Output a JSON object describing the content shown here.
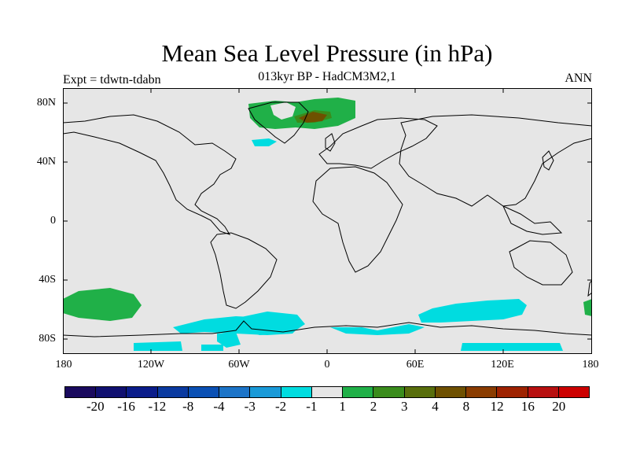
{
  "title": "Mean Sea Level Pressure (in hPa)",
  "subtitle": "013kyr BP - HadCM3M2,1",
  "expt_label": "Expt = tdwtn-tdabn",
  "season": "ANN",
  "y_axis": [
    "80N",
    "40N",
    "0",
    "40S",
    "80S"
  ],
  "x_axis": [
    "180",
    "120W",
    "60W",
    "0",
    "60E",
    "120E",
    "180"
  ],
  "colorbar": {
    "colors": [
      "#1a0a5e",
      "#101070",
      "#0a1c8a",
      "#0a3aa0",
      "#0a50b4",
      "#1c74c8",
      "#1a9ad8",
      "#00dce0",
      "#e6e6e6",
      "#20b048",
      "#3a8c1c",
      "#586e0c",
      "#6e5000",
      "#8a3c00",
      "#9e2200",
      "#b81010",
      "#cc0000"
    ],
    "labels": [
      "-20",
      "-16",
      "-12",
      "-8",
      "-4",
      "-3",
      "-2",
      "-1",
      "1",
      "2",
      "3",
      "4",
      "8",
      "12",
      "16",
      "20"
    ]
  },
  "colors": {
    "ocean": "#e6e6e6",
    "pos_small": "#20b048",
    "pos_mid": "#3a8c1c",
    "pos_high": "#6e5000",
    "neg_small": "#00dce0"
  }
}
